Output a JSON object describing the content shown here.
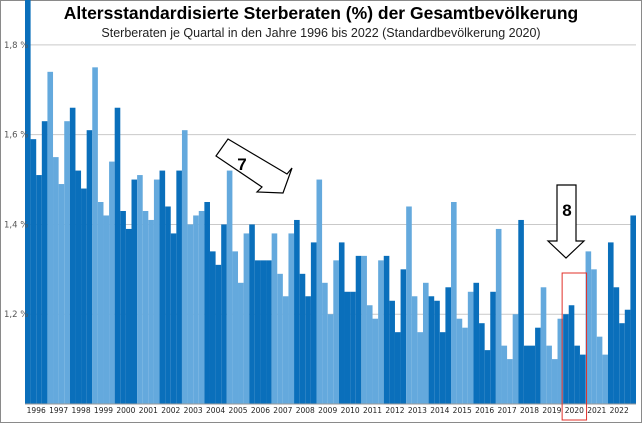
{
  "colors": {
    "dark": "#0a6fbb",
    "light": "#64a9dd",
    "grid": "#c9c9c9",
    "highlight": "#e0302a"
  },
  "chart_data": {
    "type": "bar",
    "title": "Altersstandardisierte Sterberaten (%) der Gesamtbevölkerung",
    "subtitle": "Sterberaten je Quartal in den Jahre 1996 bis 2022 (Standardbevölkerung 2020)",
    "ylim": [
      1.0,
      1.9
    ],
    "yticks": [
      {
        "value": 1.2,
        "label": "1,2 %"
      },
      {
        "value": 1.4,
        "label": "1,4 %"
      },
      {
        "value": 1.6,
        "label": "1,6 %"
      },
      {
        "value": 1.8,
        "label": "1,8 %"
      }
    ],
    "grid": true,
    "categories": [
      "1996",
      "1997",
      "1998",
      "1999",
      "2000",
      "2001",
      "2002",
      "2003",
      "2004",
      "2005",
      "2006",
      "2007",
      "2008",
      "2009",
      "2010",
      "2011",
      "2012",
      "2013",
      "2014",
      "2015",
      "2016",
      "2017",
      "2018",
      "2019",
      "2020",
      "2021",
      "2022"
    ],
    "series": [
      {
        "values": [
          [
            1.9,
            1.59,
            1.51,
            1.63
          ],
          [
            1.74,
            1.55,
            1.49,
            1.63
          ],
          [
            1.66,
            1.52,
            1.48,
            1.61
          ],
          [
            1.75,
            1.45,
            1.42,
            1.54
          ],
          [
            1.66,
            1.43,
            1.39,
            1.5
          ],
          [
            1.51,
            1.43,
            1.41,
            1.5
          ],
          [
            1.52,
            1.44,
            1.38,
            1.52
          ],
          [
            1.61,
            1.4,
            1.42,
            1.43
          ],
          [
            1.45,
            1.34,
            1.31,
            1.4
          ],
          [
            1.52,
            1.34,
            1.27,
            1.38
          ],
          [
            1.4,
            1.32,
            1.32,
            1.32
          ],
          [
            1.38,
            1.29,
            1.24,
            1.38
          ],
          [
            1.41,
            1.29,
            1.24,
            1.36
          ],
          [
            1.5,
            1.27,
            1.2,
            1.32
          ],
          [
            1.36,
            1.25,
            1.25,
            1.33
          ],
          [
            1.33,
            1.22,
            1.19,
            1.32
          ],
          [
            1.33,
            1.23,
            1.16,
            1.3
          ],
          [
            1.44,
            1.24,
            1.16,
            1.27
          ],
          [
            1.24,
            1.23,
            1.16,
            1.26
          ],
          [
            1.45,
            1.19,
            1.17,
            1.25
          ],
          [
            1.27,
            1.18,
            1.12,
            1.25
          ],
          [
            1.39,
            1.13,
            1.1,
            1.2
          ],
          [
            1.41,
            1.13,
            1.13,
            1.17
          ],
          [
            1.26,
            1.13,
            1.1,
            1.19
          ],
          [
            1.2,
            1.22,
            1.13,
            1.11
          ],
          [
            1.34,
            1.3,
            1.15,
            1.11
          ],
          [
            1.36,
            1.26,
            1.18,
            1.21
          ]
        ]
      }
    ],
    "final_bar": 1.42,
    "annotations": [
      {
        "label": "7",
        "kind": "arrow-diagonal"
      },
      {
        "label": "8",
        "kind": "arrow-down",
        "target_year": "2020"
      }
    ]
  }
}
